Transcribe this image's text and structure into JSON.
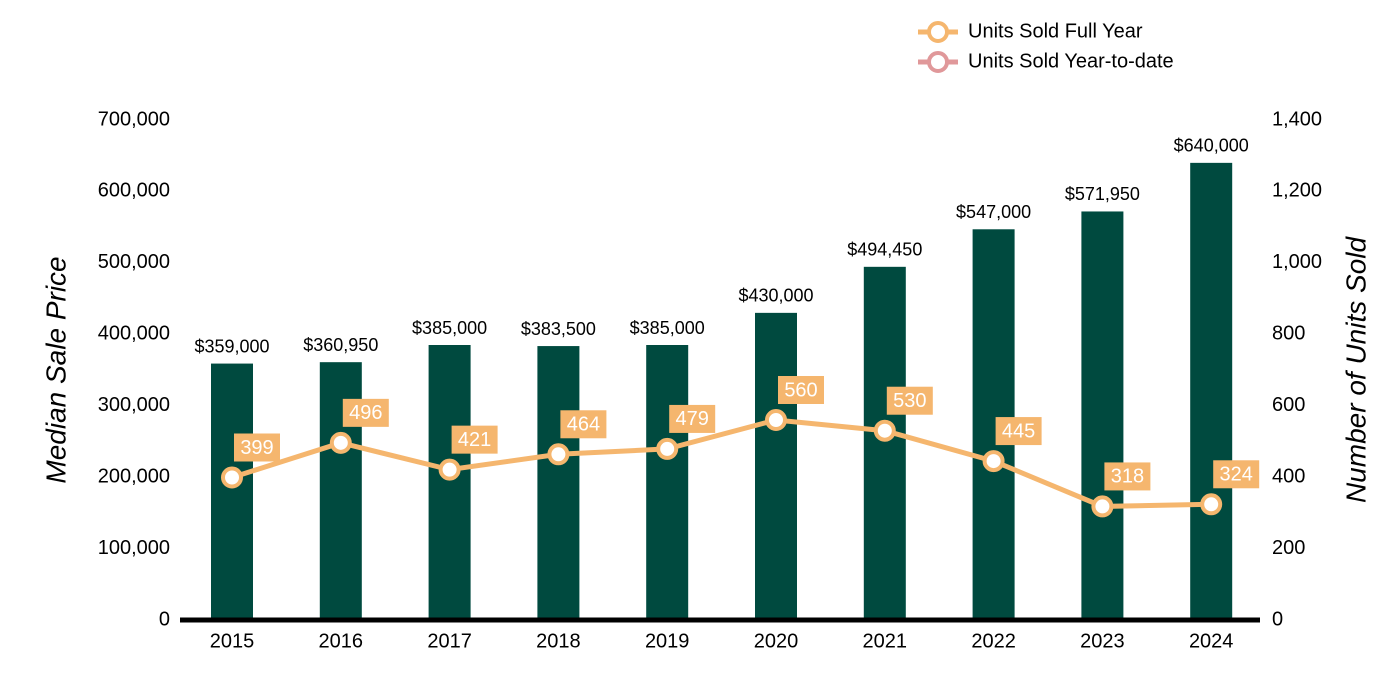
{
  "chart_data": {
    "type": "bar",
    "categories": [
      "2015",
      "2016",
      "2017",
      "2018",
      "2019",
      "2020",
      "2021",
      "2022",
      "2023",
      "2024"
    ],
    "values": [
      359000,
      360950,
      385000,
      383500,
      385000,
      430000,
      494450,
      547000,
      571950,
      640000
    ],
    "value_labels": [
      "$359,000",
      "$360,950",
      "$385,000",
      "$383,500",
      "$385,000",
      "$430,000",
      "$494,450",
      "$547,000",
      "$571,950",
      "$640,000"
    ],
    "color": "#004a3f",
    "ylabel": "Median Sale Price",
    "y2label": "Number of Units Sold",
    "ylim": [
      0,
      700000
    ],
    "yticks": [
      0,
      {
        "value": 100000,
        "label": "100,000"
      },
      {
        "value": 200000,
        "label": "200,000"
      },
      {
        "value": 300000,
        "label": "300,000"
      },
      {
        "value": 400000,
        "label": "400,000"
      },
      {
        "value": 500000,
        "label": "500,000"
      },
      {
        "value": 600000,
        "label": "600,000"
      },
      {
        "value": 700000,
        "label": "700,000"
      }
    ],
    "y2lim": [
      0,
      1400
    ],
    "y2ticks": [
      0,
      200,
      400,
      600,
      800,
      {
        "value": 1000,
        "label": "1,000"
      },
      {
        "value": 1200,
        "label": "1,200"
      },
      {
        "value": 1400,
        "label": "1,400"
      }
    ],
    "series": [
      {
        "name": "Units Sold Full Year",
        "color": "#f5b66e",
        "axis": "y2",
        "values": [
          399,
          496,
          421,
          464,
          479,
          560,
          530,
          445,
          318,
          324
        ]
      },
      {
        "name": "Units Sold Year-to-date",
        "color": "#e0989a",
        "axis": "y2",
        "values": [
          null,
          null,
          null,
          null,
          null,
          null,
          null,
          null,
          null,
          null
        ]
      }
    ],
    "legend": "top-right"
  }
}
